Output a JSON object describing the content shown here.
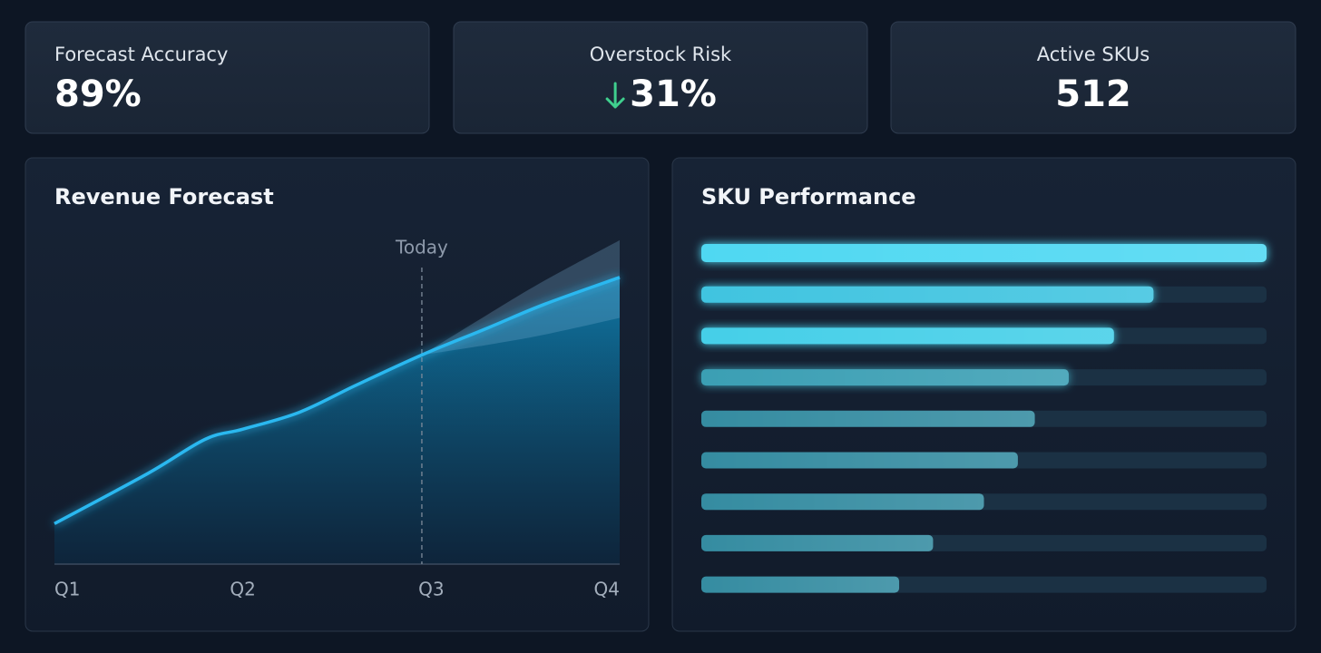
{
  "kpis": [
    {
      "label": "Forecast Accuracy",
      "value": "89%",
      "align": "left"
    },
    {
      "label": "Overstock Risk",
      "value": "31%",
      "trend": "down",
      "align": "center"
    },
    {
      "label": "Active SKUs",
      "value": "512",
      "align": "center"
    }
  ],
  "chart_data": [
    {
      "type": "line",
      "title": "Revenue Forecast",
      "x": [
        1,
        1.5,
        1.8,
        2,
        2.3,
        2.6,
        2.95,
        3.3,
        3.6,
        4
      ],
      "values": [
        12,
        27,
        37,
        40,
        45,
        53,
        62,
        70,
        77,
        85
      ],
      "forecast_upper": [
        null,
        null,
        null,
        null,
        null,
        null,
        62,
        74,
        84,
        96
      ],
      "forecast_lower": [
        null,
        null,
        null,
        null,
        null,
        null,
        62,
        65,
        68,
        73
      ],
      "color": "#2ab8f0",
      "xlim": [
        1,
        4
      ],
      "ylim": [
        0,
        100
      ],
      "xticks": [
        {
          "value": 1,
          "label": "Q1"
        },
        {
          "value": 2,
          "label": "Q2"
        },
        {
          "value": 3,
          "label": "Q3"
        },
        {
          "value": 4,
          "label": "Q4"
        }
      ],
      "annotations": [
        {
          "text": "Today",
          "x": 2.95
        }
      ]
    },
    {
      "type": "hbar",
      "title": "SKU Performance",
      "values": [
        100,
        80,
        73,
        65,
        59,
        56,
        50,
        41,
        35
      ],
      "colors": [
        "#4fd8f2",
        "#3fc4e0",
        "#44cfe8",
        "#3a9fb4",
        "#3a9cb2",
        "#3a9cb2",
        "#3a9cb2",
        "#3a9cb2",
        "#3a9cb2"
      ],
      "xlim": [
        0,
        100
      ]
    }
  ]
}
